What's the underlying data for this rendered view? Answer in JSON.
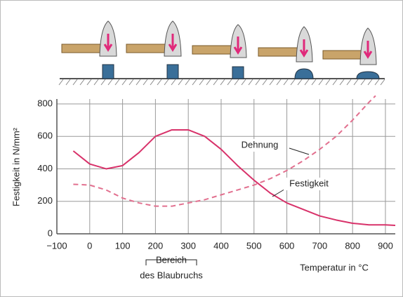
{
  "chart_data": {
    "type": "line",
    "y_label": "Festigkeit in N/mm²",
    "x_label": "Temperatur in °C",
    "annotation": [
      "Bereich",
      "des Blaubruchs"
    ],
    "xlim": [
      -100,
      930
    ],
    "ylim": [
      0,
      830
    ],
    "xticks": [
      {
        "value": -100,
        "label": "−100"
      },
      0,
      100,
      200,
      300,
      400,
      500,
      600,
      700,
      800,
      900
    ],
    "yticks": [
      0,
      200,
      400,
      600,
      800
    ],
    "grid": true,
    "series": [
      {
        "name": "Festigkeit",
        "color": "#d8326a",
        "dash": false,
        "x": [
          -50,
          0,
          50,
          100,
          150,
          200,
          250,
          300,
          350,
          400,
          450,
          500,
          550,
          600,
          650,
          700,
          750,
          800,
          850,
          900,
          930
        ],
        "values": [
          510,
          430,
          400,
          420,
          500,
          600,
          640,
          640,
          600,
          520,
          420,
          330,
          250,
          190,
          150,
          110,
          85,
          65,
          55,
          55,
          52
        ]
      },
      {
        "name": "Dehnung",
        "color": "#e2708f",
        "dash": true,
        "x": [
          -50,
          0,
          50,
          100,
          150,
          200,
          250,
          300,
          350,
          400,
          450,
          500,
          550,
          600,
          650,
          700,
          750,
          800,
          850,
          870
        ],
        "values": [
          305,
          300,
          270,
          220,
          190,
          170,
          170,
          190,
          210,
          240,
          270,
          300,
          340,
          390,
          450,
          520,
          600,
          700,
          810,
          850
        ]
      }
    ]
  }
}
